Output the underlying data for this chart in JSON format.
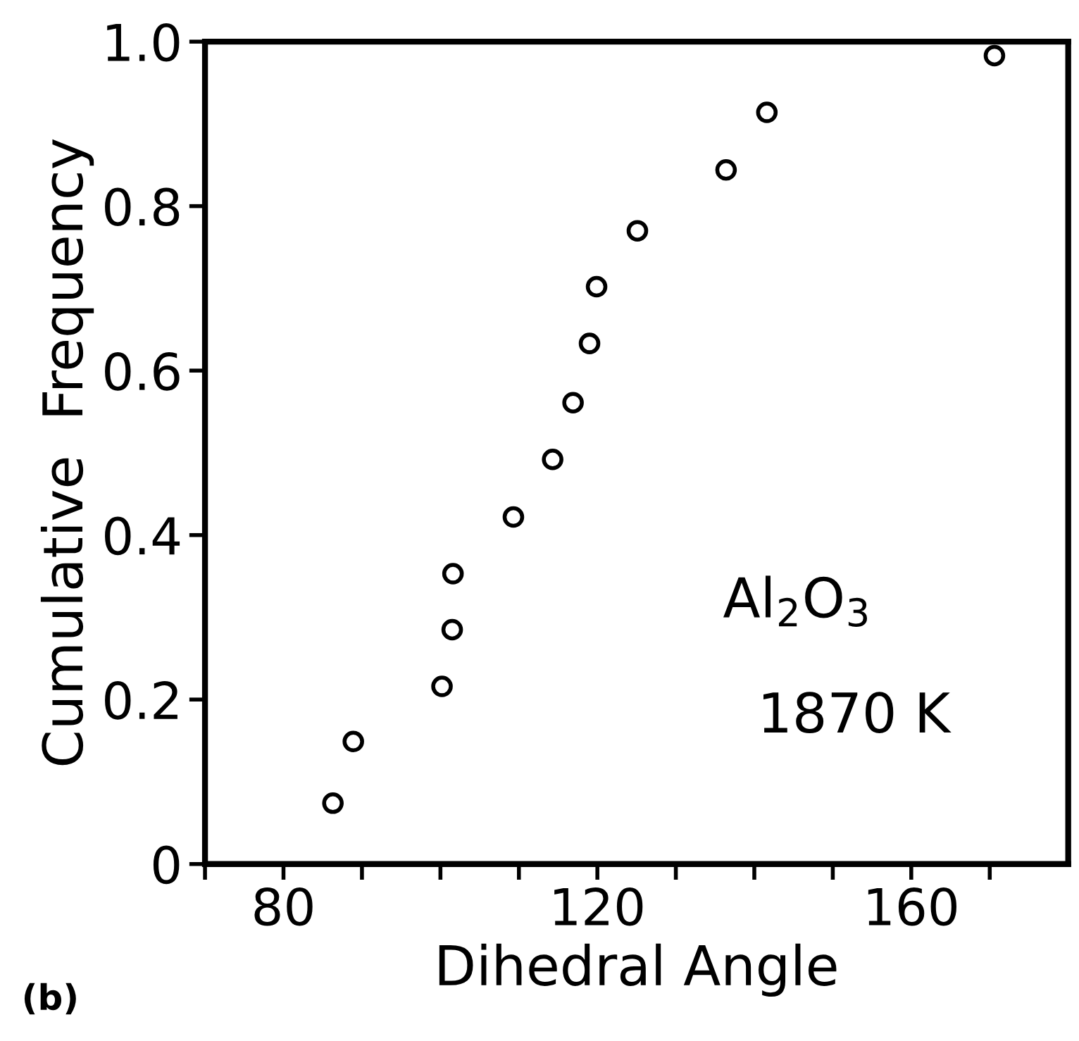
{
  "chart_data": {
    "type": "scatter",
    "xlabel": "Dihedral Angle",
    "ylabel": "Cumulative  Frequency",
    "x": [
      86.3,
      88.9,
      100.2,
      101.5,
      101.6,
      109.3,
      114.3,
      116.9,
      119.0,
      119.9,
      125.1,
      136.4,
      141.6,
      170.6
    ],
    "values": [
      0.074,
      0.149,
      0.216,
      0.285,
      0.353,
      0.422,
      0.492,
      0.561,
      0.633,
      0.702,
      0.77,
      0.844,
      0.914,
      0.983
    ],
    "color": "#000000",
    "marker": "circle",
    "xlim": [
      70,
      180
    ],
    "ylim": [
      0,
      1.0
    ],
    "xticks": [
      {
        "value": 70,
        "label": null
      },
      80,
      {
        "value": 90,
        "label": null
      },
      {
        "value": 100,
        "label": null
      },
      {
        "value": 110,
        "label": null
      },
      120,
      {
        "value": 130,
        "label": null
      },
      {
        "value": 140,
        "label": null
      },
      {
        "value": 150,
        "label": null
      },
      160,
      {
        "value": 170,
        "label": null
      }
    ],
    "yticks": [
      {
        "value": 0,
        "label": "0"
      },
      0.2,
      0.4,
      0.6,
      0.8,
      {
        "value": 1.0,
        "label": "1.0"
      }
    ],
    "grid": false,
    "annotations": [
      "Al$_{2}$O$_{3}$",
      "1870 K",
      "(b)"
    ]
  }
}
